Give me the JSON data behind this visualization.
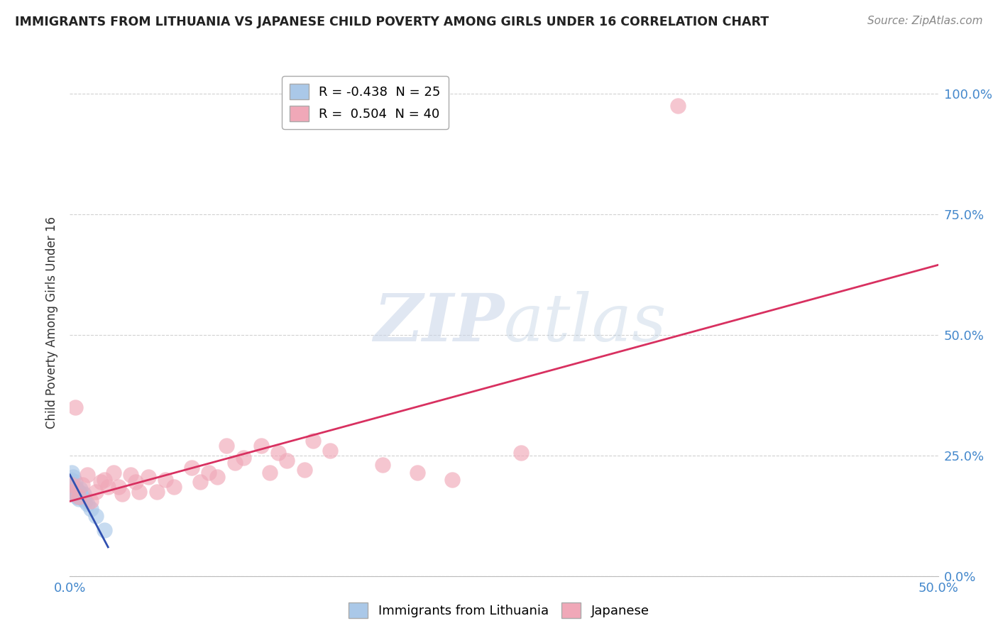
{
  "title": "IMMIGRANTS FROM LITHUANIA VS JAPANESE CHILD POVERTY AMONG GIRLS UNDER 16 CORRELATION CHART",
  "source": "Source: ZipAtlas.com",
  "ylabel": "Child Poverty Among Girls Under 16",
  "xlim": [
    0.0,
    0.5
  ],
  "ylim": [
    0.0,
    1.05
  ],
  "yticks": [
    0.0,
    0.25,
    0.5,
    0.75,
    1.0
  ],
  "ytick_labels": [
    "0.0%",
    "25.0%",
    "50.0%",
    "75.0%",
    "100.0%"
  ],
  "xticks": [
    0.0,
    0.1,
    0.2,
    0.3,
    0.4,
    0.5
  ],
  "xtick_labels": [
    "0.0%",
    "",
    "",
    "",
    "",
    "50.0%"
  ],
  "blue_R": -0.438,
  "blue_N": 25,
  "pink_R": 0.504,
  "pink_N": 40,
  "blue_color": "#aac8e8",
  "pink_color": "#f0a8b8",
  "blue_line_color": "#3050b0",
  "pink_line_color": "#d83060",
  "watermark_zip": "ZIP",
  "watermark_atlas": "atlas",
  "blue_scatter_x": [
    0.0005,
    0.001,
    0.001,
    0.0015,
    0.002,
    0.002,
    0.002,
    0.003,
    0.003,
    0.003,
    0.004,
    0.004,
    0.005,
    0.005,
    0.005,
    0.006,
    0.006,
    0.007,
    0.008,
    0.008,
    0.009,
    0.01,
    0.012,
    0.015,
    0.02
  ],
  "blue_scatter_y": [
    0.2,
    0.185,
    0.215,
    0.19,
    0.175,
    0.205,
    0.185,
    0.17,
    0.18,
    0.195,
    0.165,
    0.18,
    0.16,
    0.175,
    0.165,
    0.17,
    0.18,
    0.165,
    0.16,
    0.17,
    0.155,
    0.15,
    0.14,
    0.125,
    0.095
  ],
  "pink_scatter_x": [
    0.0005,
    0.001,
    0.003,
    0.005,
    0.007,
    0.01,
    0.012,
    0.015,
    0.018,
    0.02,
    0.022,
    0.025,
    0.028,
    0.03,
    0.035,
    0.038,
    0.04,
    0.045,
    0.05,
    0.055,
    0.06,
    0.07,
    0.075,
    0.08,
    0.085,
    0.09,
    0.095,
    0.1,
    0.11,
    0.115,
    0.12,
    0.125,
    0.135,
    0.14,
    0.15,
    0.18,
    0.2,
    0.22,
    0.26,
    0.35
  ],
  "pink_scatter_y": [
    0.175,
    0.19,
    0.35,
    0.165,
    0.19,
    0.21,
    0.155,
    0.175,
    0.195,
    0.2,
    0.185,
    0.215,
    0.185,
    0.17,
    0.21,
    0.195,
    0.175,
    0.205,
    0.175,
    0.2,
    0.185,
    0.225,
    0.195,
    0.215,
    0.205,
    0.27,
    0.235,
    0.245,
    0.27,
    0.215,
    0.255,
    0.24,
    0.22,
    0.28,
    0.26,
    0.23,
    0.215,
    0.2,
    0.255,
    0.975
  ],
  "pink_line_x0": 0.0,
  "pink_line_y0": 0.155,
  "pink_line_x1": 0.5,
  "pink_line_y1": 0.645,
  "blue_line_x0": 0.0,
  "blue_line_y0": 0.21,
  "blue_line_x1": 0.022,
  "blue_line_y1": 0.06
}
